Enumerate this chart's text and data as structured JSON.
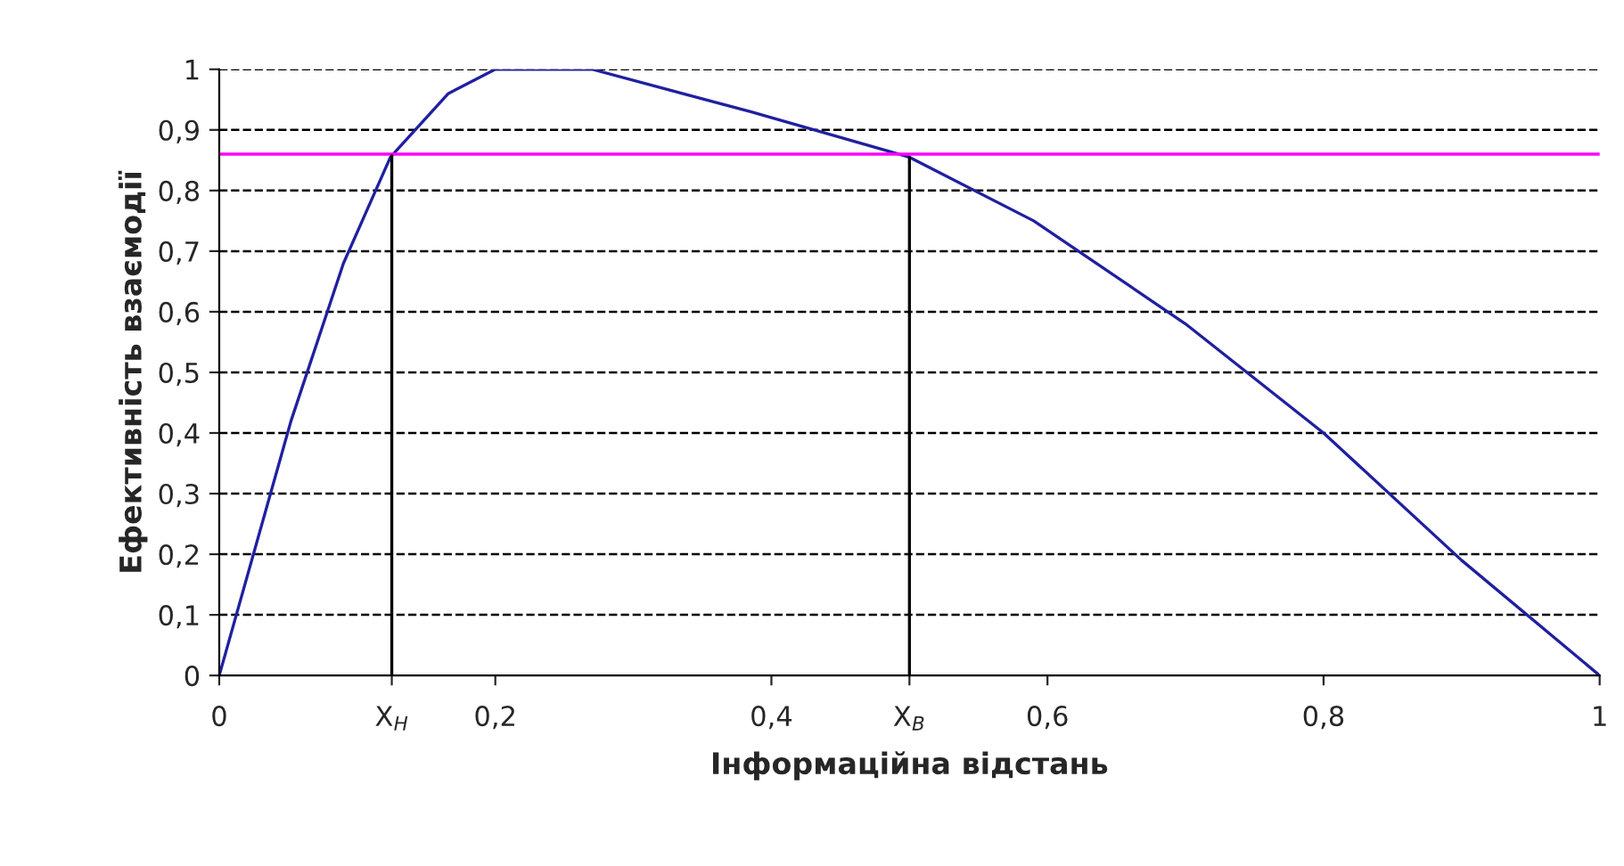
{
  "chart_data": {
    "type": "line",
    "xlabel": "Інформаційна відстань",
    "ylabel": "Ефективність взаємодії",
    "x": [
      0,
      0.052,
      0.09,
      0.124,
      0.166,
      0.2,
      0.27,
      0.385,
      0.5,
      0.59,
      0.7,
      0.8,
      0.9,
      1
    ],
    "series": [
      {
        "color": "#2020a0",
        "values": [
          0,
          0.42,
          0.68,
          0.855,
          0.96,
          1,
          1,
          0.93,
          0.855,
          0.75,
          0.58,
          0.4,
          0.19,
          0
        ]
      }
    ],
    "xlim": [
      0,
      1
    ],
    "ylim": [
      0,
      1
    ],
    "xticks": [
      0,
      {
        "value": 0.125,
        "label": "Х$_{Н}$"
      },
      {
        "value": 0.2,
        "label": "0,2"
      },
      {
        "value": 0.4,
        "label": "0,4"
      },
      {
        "value": 0.5,
        "label": "Х$_{В}$"
      },
      {
        "value": 0.6,
        "label": "0,6"
      },
      {
        "value": 0.8,
        "label": "0,8"
      },
      1
    ],
    "yticks": [
      0,
      {
        "value": 0.1,
        "label": "0,1"
      },
      {
        "value": 0.2,
        "label": "0,2"
      },
      {
        "value": 0.3,
        "label": "0,3"
      },
      {
        "value": 0.4,
        "label": "0,4"
      },
      {
        "value": 0.5,
        "label": "0,5"
      },
      {
        "value": 0.6,
        "label": "0,6"
      },
      {
        "value": 0.7,
        "label": "0,7"
      },
      {
        "value": 0.8,
        "label": "0,8"
      },
      {
        "value": 0.9,
        "label": "0,9"
      },
      1
    ],
    "grid": "y",
    "marker": "none",
    "line_style": "solid",
    "ref_lines": [
      {
        "axis": "y",
        "value": 0.86,
        "color": "#ff00ff"
      },
      {
        "axis": "x",
        "value": 0.125,
        "color": "#000000"
      },
      {
        "axis": "x",
        "value": 0.5,
        "color": "#000000"
      }
    ]
  }
}
